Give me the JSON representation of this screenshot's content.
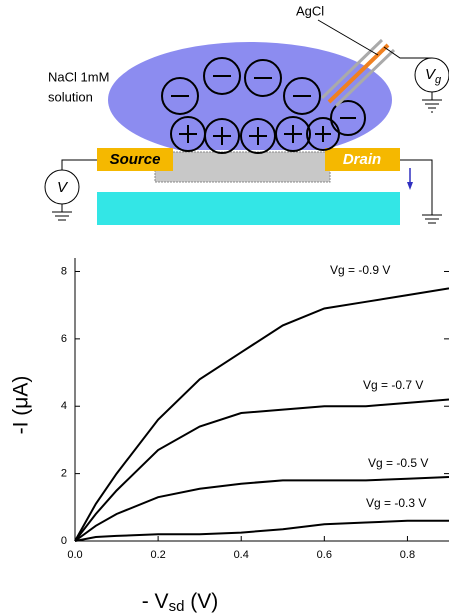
{
  "diagram": {
    "electrode_label": "AgCl",
    "solution_label": [
      "NaCl 1mM",
      "solution"
    ],
    "gate_label": "V",
    "gate_sub": "g",
    "source_label": "Source",
    "drain_label": "Drain",
    "meter_label": "V"
  },
  "chart_data": {
    "type": "line",
    "xlabel": [
      "- V",
      "sd",
      " (V)"
    ],
    "ylabel": "-I (μA)",
    "x": [
      0,
      0.05,
      0.1,
      0.2,
      0.3,
      0.4,
      0.5,
      0.6,
      0.7,
      0.8,
      0.9
    ],
    "series": [
      {
        "name": "Vg = -0.9 V",
        "color": "#000000",
        "values": [
          0,
          1.1,
          2.0,
          3.6,
          4.8,
          5.6,
          6.4,
          6.9,
          7.1,
          7.3,
          7.5
        ]
      },
      {
        "name": "Vg = -0.7 V",
        "color": "#000000",
        "values": [
          0,
          0.8,
          1.5,
          2.7,
          3.4,
          3.8,
          3.9,
          4.0,
          4.0,
          4.1,
          4.2
        ]
      },
      {
        "name": "Vg = -0.5 V",
        "color": "#000000",
        "values": [
          0,
          0.45,
          0.8,
          1.3,
          1.55,
          1.7,
          1.8,
          1.8,
          1.8,
          1.85,
          1.9
        ]
      },
      {
        "name": "Vg = -0.3 V",
        "color": "#000000",
        "values": [
          0,
          0.12,
          0.15,
          0.2,
          0.2,
          0.25,
          0.35,
          0.5,
          0.55,
          0.6,
          0.6
        ]
      }
    ],
    "xlim": [
      0,
      0.9
    ],
    "ylim": [
      0,
      8.4
    ],
    "xticks": [
      {
        "value": 0,
        "label": "0.0"
      },
      0.2,
      0.4,
      0.6,
      0.8
    ],
    "yticks": [
      0,
      2,
      4,
      6,
      8
    ]
  }
}
